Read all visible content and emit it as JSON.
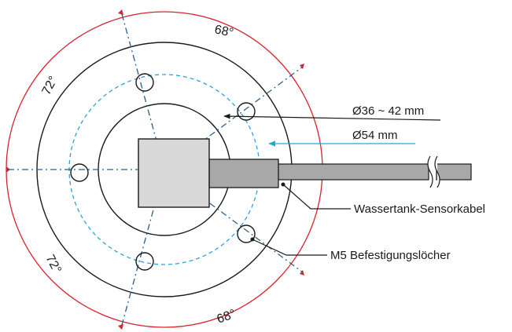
{
  "labels": {
    "inner_diameter": "Ø36 ~ 42 mm",
    "bolt_circle": "Ø54 mm",
    "cable": "Wassertank-Sensorkabel",
    "holes": "M5 Befestigungslöcher"
  },
  "angles": {
    "top": "68°",
    "upper_left": "72°",
    "lower_left": "72°",
    "bottom": "68°"
  },
  "colors": {
    "outline": "#1a1a1a",
    "dimension_arc": "#d9232d",
    "bolt_circle": "#29a3d6",
    "axis_lines": "#2c5d8f",
    "sensor_body": "#d8d8d8",
    "cable": "#a8a8a8"
  }
}
